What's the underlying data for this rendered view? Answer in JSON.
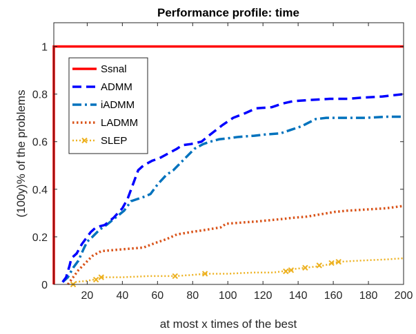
{
  "chart_data": {
    "type": "line",
    "title": "Performance profile: time",
    "xlabel": "at most x times of the best",
    "ylabel": "(100y)% of the problems",
    "xlim": [
      1,
      200
    ],
    "ylim": [
      0,
      1.1
    ],
    "xticks": [
      20,
      40,
      60,
      80,
      100,
      120,
      140,
      160,
      180,
      200
    ],
    "yticks": [
      0,
      0.2,
      0.4,
      0.6,
      0.8,
      1
    ],
    "ytick_labels": [
      "0",
      "0.2",
      "0.4",
      "0.6",
      "0.8",
      "1"
    ],
    "grid": false,
    "legend_position": "top-left",
    "series": [
      {
        "name": "Ssnal",
        "color": "#ff0000",
        "style": "solid",
        "points": [
          [
            1,
            0
          ],
          [
            1,
            1
          ],
          [
            200,
            1
          ]
        ]
      },
      {
        "name": "ADMM",
        "color": "#0000ff",
        "style": "dashed",
        "points": [
          [
            6,
            0.01
          ],
          [
            8,
            0.03
          ],
          [
            10,
            0.08
          ],
          [
            11,
            0.11
          ],
          [
            14,
            0.13
          ],
          [
            17,
            0.17
          ],
          [
            19,
            0.19
          ],
          [
            22,
            0.22
          ],
          [
            25,
            0.24
          ],
          [
            30,
            0.25
          ],
          [
            35,
            0.28
          ],
          [
            40,
            0.32
          ],
          [
            43,
            0.36
          ],
          [
            47,
            0.44
          ],
          [
            49,
            0.48
          ],
          [
            52,
            0.5
          ],
          [
            57,
            0.52
          ],
          [
            61,
            0.53
          ],
          [
            66,
            0.55
          ],
          [
            71,
            0.57
          ],
          [
            74,
            0.585
          ],
          [
            79,
            0.59
          ],
          [
            85,
            0.6
          ],
          [
            90,
            0.63
          ],
          [
            97,
            0.67
          ],
          [
            103,
            0.7
          ],
          [
            110,
            0.72
          ],
          [
            116,
            0.74
          ],
          [
            125,
            0.745
          ],
          [
            131,
            0.76
          ],
          [
            137,
            0.77
          ],
          [
            146,
            0.775
          ],
          [
            158,
            0.78
          ],
          [
            168,
            0.78
          ],
          [
            176,
            0.785
          ],
          [
            188,
            0.79
          ],
          [
            200,
            0.8
          ]
        ]
      },
      {
        "name": "iADMM",
        "color": "#0072bd",
        "style": "dashdot",
        "points": [
          [
            6,
            0.01
          ],
          [
            9,
            0.03
          ],
          [
            12,
            0.07
          ],
          [
            15,
            0.1
          ],
          [
            18,
            0.15
          ],
          [
            20,
            0.18
          ],
          [
            23,
            0.2
          ],
          [
            27,
            0.23
          ],
          [
            31,
            0.25
          ],
          [
            36,
            0.28
          ],
          [
            41,
            0.31
          ],
          [
            45,
            0.35
          ],
          [
            49,
            0.36
          ],
          [
            53,
            0.37
          ],
          [
            56,
            0.38
          ],
          [
            60,
            0.42
          ],
          [
            65,
            0.46
          ],
          [
            69,
            0.48
          ],
          [
            73,
            0.51
          ],
          [
            77,
            0.54
          ],
          [
            81,
            0.57
          ],
          [
            86,
            0.59
          ],
          [
            90,
            0.6
          ],
          [
            95,
            0.61
          ],
          [
            101,
            0.615
          ],
          [
            106,
            0.62
          ],
          [
            115,
            0.625
          ],
          [
            121,
            0.63
          ],
          [
            130,
            0.635
          ],
          [
            136,
            0.65
          ],
          [
            142,
            0.665
          ],
          [
            146,
            0.68
          ],
          [
            150,
            0.695
          ],
          [
            156,
            0.7
          ],
          [
            167,
            0.7
          ],
          [
            178,
            0.7
          ],
          [
            190,
            0.705
          ],
          [
            200,
            0.705
          ]
        ]
      },
      {
        "name": "LADMM",
        "color": "#d95319",
        "style": "dotted",
        "points": [
          [
            9,
            0.0
          ],
          [
            12,
            0.03
          ],
          [
            15,
            0.06
          ],
          [
            19,
            0.09
          ],
          [
            23,
            0.12
          ],
          [
            28,
            0.14
          ],
          [
            36,
            0.145
          ],
          [
            44,
            0.15
          ],
          [
            52,
            0.155
          ],
          [
            59,
            0.175
          ],
          [
            65,
            0.19
          ],
          [
            71,
            0.21
          ],
          [
            79,
            0.22
          ],
          [
            88,
            0.23
          ],
          [
            96,
            0.24
          ],
          [
            99,
            0.255
          ],
          [
            108,
            0.26
          ],
          [
            117,
            0.265
          ],
          [
            124,
            0.27
          ],
          [
            131,
            0.275
          ],
          [
            137,
            0.28
          ],
          [
            145,
            0.285
          ],
          [
            153,
            0.295
          ],
          [
            161,
            0.305
          ],
          [
            168,
            0.31
          ],
          [
            179,
            0.315
          ],
          [
            190,
            0.32
          ],
          [
            200,
            0.33
          ]
        ]
      },
      {
        "name": "SLEP",
        "color": "#edb120",
        "style": "dotted-x",
        "points": [
          [
            12,
            0.0
          ],
          [
            13,
            0.01
          ],
          [
            20,
            0.015
          ],
          [
            27,
            0.025
          ],
          [
            28,
            0.03
          ],
          [
            40,
            0.03
          ],
          [
            55,
            0.035
          ],
          [
            70,
            0.035
          ],
          [
            80,
            0.04
          ],
          [
            88,
            0.045
          ],
          [
            100,
            0.045
          ],
          [
            115,
            0.05
          ],
          [
            126,
            0.05
          ],
          [
            131,
            0.055
          ],
          [
            136,
            0.06
          ],
          [
            138,
            0.065
          ],
          [
            144,
            0.07
          ],
          [
            150,
            0.075
          ],
          [
            155,
            0.08
          ],
          [
            160,
            0.09
          ],
          [
            163,
            0.095
          ],
          [
            175,
            0.1
          ],
          [
            190,
            0.105
          ],
          [
            200,
            0.11
          ]
        ],
        "markers": [
          [
            12,
            0.0
          ],
          [
            25,
            0.02
          ],
          [
            28,
            0.03
          ],
          [
            70,
            0.035
          ],
          [
            87,
            0.045
          ],
          [
            133,
            0.055
          ],
          [
            136,
            0.06
          ],
          [
            144,
            0.07
          ],
          [
            152,
            0.08
          ],
          [
            159,
            0.09
          ],
          [
            163,
            0.095
          ]
        ]
      }
    ]
  }
}
